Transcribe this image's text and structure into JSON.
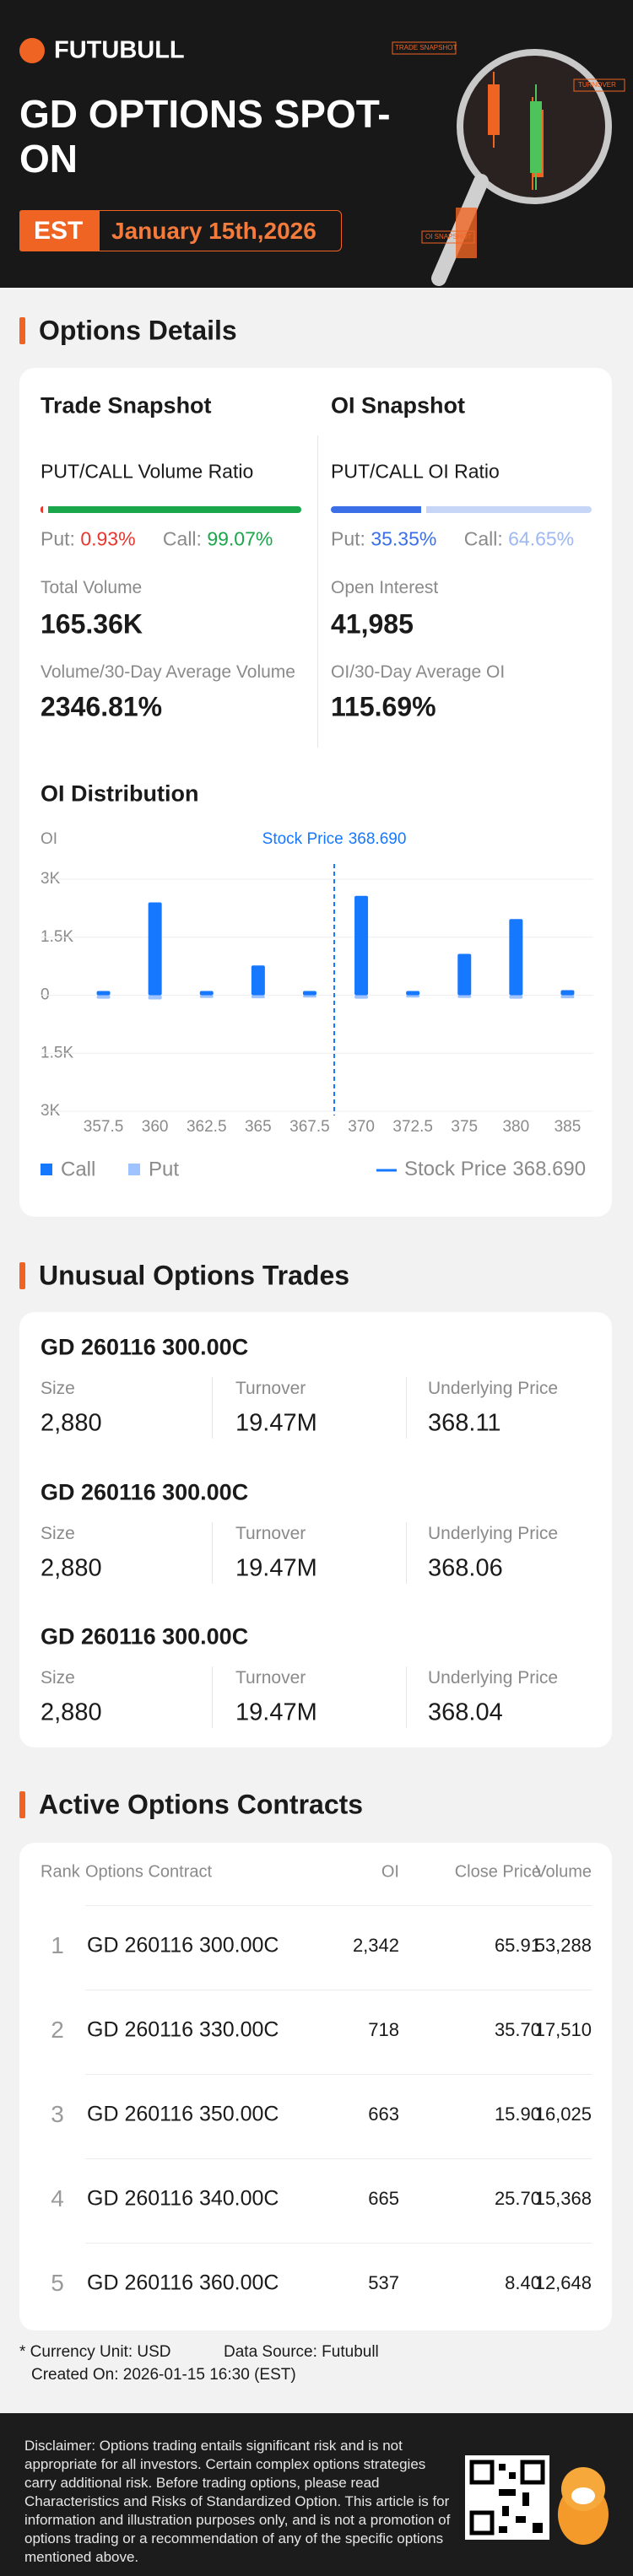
{
  "header": {
    "logo": "FUTUBULL",
    "title": "GD OPTIONS SPOT-ON",
    "timezone": "EST",
    "date": "January 15th,2026",
    "decor_labels": [
      "TRADE SNAPSHOT",
      "TURNOVER",
      "OI SNAPSHOT"
    ]
  },
  "options_details": {
    "title": "Options Details",
    "trade_snapshot": {
      "title": "Trade Snapshot",
      "ratio_label": "PUT/CALL Volume Ratio",
      "put_label": "Put:",
      "put": {
        "value": 0.93,
        "label": "0.93%"
      },
      "put_color": "#e8362e",
      "call_label": "Call:",
      "call": {
        "value": 99.07,
        "label": "99.07%"
      },
      "call_color": "#1aa64b",
      "metrics": [
        {
          "label": "Total Volume",
          "value": "165.36K"
        },
        {
          "label": "Volume/30-Day Average Volume",
          "value": "2346.81%"
        }
      ]
    },
    "oi_snapshot": {
      "title": "OI Snapshot",
      "ratio_label": "PUT/CALL OI Ratio",
      "put_label": "Put:",
      "put": {
        "value": 35.35,
        "label": "35.35%"
      },
      "put_color": "#3b6fe8",
      "call_label": "Call:",
      "call": {
        "value": 64.65,
        "label": "64.65%"
      },
      "call_color": "#c7d6f7",
      "metrics": [
        {
          "label": "Open Interest",
          "value": "41,985"
        },
        {
          "label": "OI/30-Day Average OI",
          "value": "115.69%"
        }
      ]
    },
    "oi_distribution_title": "OI Distribution"
  },
  "chart_data": {
    "type": "bar",
    "y_label": "OI",
    "categories": [
      "357.5",
      "360",
      "362.5",
      "365",
      "367.5",
      "370",
      "372.5",
      "375",
      "380",
      "385"
    ],
    "series": [
      {
        "name": "Call",
        "color": "#1677ff",
        "values": [
          110,
          2400,
          110,
          770,
          110,
          2570,
          110,
          1070,
          1970,
          130
        ]
      },
      {
        "name": "Put",
        "color": "#9ec3ff",
        "values": [
          -90,
          -110,
          -70,
          -80,
          -60,
          -90,
          -60,
          -70,
          -90,
          -80
        ]
      }
    ],
    "ylim": [
      -3000,
      3000
    ],
    "yticks": [
      {
        "value": 3000,
        "label": "3K"
      },
      {
        "value": 1500,
        "label": "1.5K"
      },
      0,
      {
        "value": -1500,
        "label": "1.5K"
      },
      {
        "value": -3000,
        "label": "3K"
      }
    ],
    "grid": true,
    "stock_price": {
      "name": "Stock Price",
      "value": 368.69,
      "label": "368.690",
      "color": "#1677ff"
    }
  },
  "unusual_trades": {
    "title": "Unusual Options Trades",
    "labels": {
      "size": "Size",
      "turnover": "Turnover",
      "underlying": "Underlying Price"
    },
    "items": [
      {
        "contract": "GD 260116 300.00C",
        "size": "2,880",
        "turnover": "19.47M",
        "underlying": "368.11"
      },
      {
        "contract": "GD 260116 300.00C",
        "size": "2,880",
        "turnover": "19.47M",
        "underlying": "368.06"
      },
      {
        "contract": "GD 260116 300.00C",
        "size": "2,880",
        "turnover": "19.47M",
        "underlying": "368.04"
      }
    ]
  },
  "active_contracts": {
    "title": "Active Options Contracts",
    "columns": [
      "Rank",
      "Options Contract",
      "OI",
      "Close Price",
      "Volume"
    ],
    "rows": [
      [
        "1",
        "GD 260116 300.00C",
        "2,342",
        "65.91",
        "53,288"
      ],
      [
        "2",
        "GD 260116 330.00C",
        "718",
        "35.70",
        "17,510"
      ],
      [
        "3",
        "GD 260116 350.00C",
        "663",
        "15.90",
        "16,025"
      ],
      [
        "4",
        "GD 260116 340.00C",
        "665",
        "25.70",
        "15,368"
      ],
      [
        "5",
        "GD 260116 360.00C",
        "537",
        "8.40",
        "12,648"
      ]
    ]
  },
  "footnotes": {
    "currency": "* Currency Unit: USD",
    "source": "Data Source: Futubull",
    "created": "Created On: 2026-01-15 16:30 (EST)"
  },
  "disclaimer": "Disclaimer: Options trading entails significant risk and is not appropriate for all investors. Certain complex options strategies carry additional risk. Before trading options, please read Characteristics and Risks of Standardized Option. This article is for information and illustration purposes only, and is not a promotion of options trading or a recommendation of any of the specific options mentioned above."
}
